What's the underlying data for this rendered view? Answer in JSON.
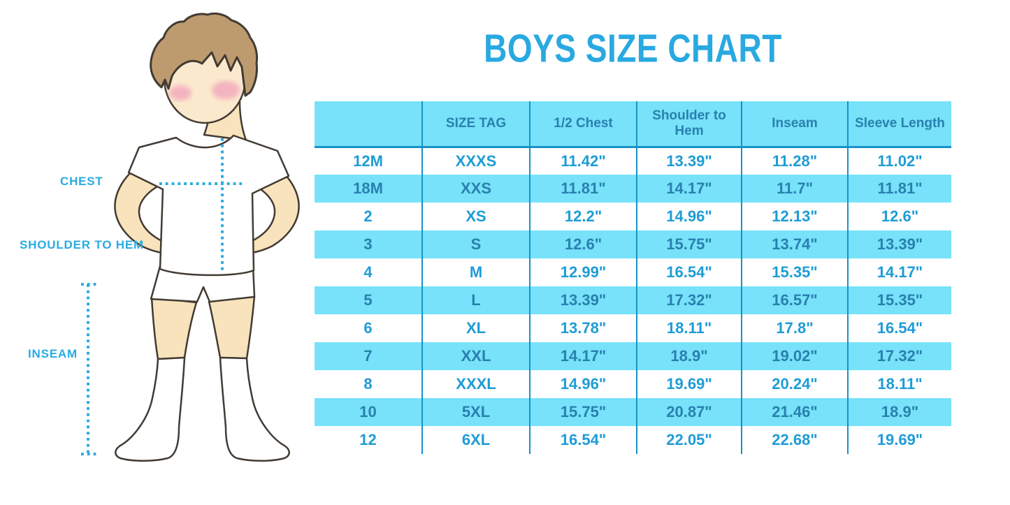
{
  "page": {
    "title": "BOYS SIZE CHART"
  },
  "figure": {
    "chest_label": "CHEST",
    "shoulder_to_hem_label": "SHOULDER TO HEM",
    "inseam_label": "INSEAM"
  },
  "colors": {
    "accent_blue": "#29ABE2",
    "band_background": "#77E2F9",
    "separator_line": "#1792C8",
    "row_text": "#1E9CD6",
    "band_text": "#2980AF",
    "hair": "#BE9B6F",
    "skin_face": "#FBE9CD",
    "skin_limbs": "#F9E3BC",
    "cheek": "#F2A6BC",
    "outline": "#423B33"
  },
  "chart_data": {
    "type": "table",
    "title": "BOYS SIZE CHART",
    "columns": [
      "",
      "SIZE TAG",
      "1/2 Chest",
      "Shoulder to Hem",
      "Inseam",
      "Sleeve Length"
    ],
    "rows": [
      [
        "12M",
        "XXXS",
        "11.42\"",
        "13.39\"",
        "11.28\"",
        "11.02\""
      ],
      [
        "18M",
        "XXS",
        "11.81\"",
        "14.17\"",
        "11.7\"",
        "11.81\""
      ],
      [
        "2",
        "XS",
        "12.2\"",
        "14.96\"",
        "12.13\"",
        "12.6\""
      ],
      [
        "3",
        "S",
        "12.6\"",
        "15.75\"",
        "13.74\"",
        "13.39\""
      ],
      [
        "4",
        "M",
        "12.99\"",
        "16.54\"",
        "15.35\"",
        "14.17\""
      ],
      [
        "5",
        "L",
        "13.39\"",
        "17.32\"",
        "16.57\"",
        "15.35\""
      ],
      [
        "6",
        "XL",
        "13.78\"",
        "18.11\"",
        "17.8\"",
        "16.54\""
      ],
      [
        "7",
        "XXL",
        "14.17\"",
        "18.9\"",
        "19.02\"",
        "17.32\""
      ],
      [
        "8",
        "XXXL",
        "14.96\"",
        "19.69\"",
        "20.24\"",
        "18.11\""
      ],
      [
        "10",
        "5XL",
        "15.75\"",
        "20.87\"",
        "21.46\"",
        "18.9\""
      ],
      [
        "12",
        "6XL",
        "16.54\"",
        "22.05\"",
        "22.68\"",
        "19.69\""
      ]
    ]
  }
}
